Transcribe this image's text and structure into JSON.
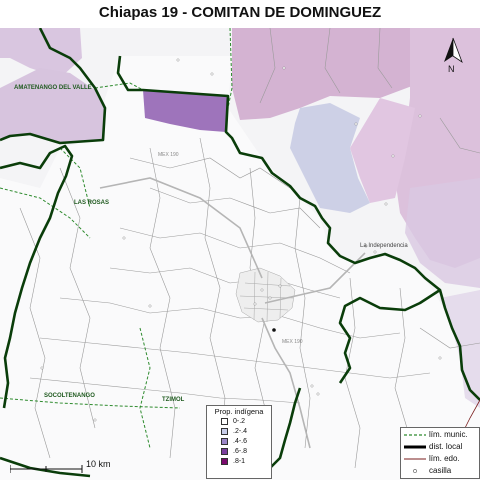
{
  "title": "Chiapas 19 - COMITAN DE DOMINGUEZ",
  "place_labels": {
    "amatenango": "AMATENANGO DEL VALLE",
    "las_rosas": "LAS ROSAS",
    "socoltenango": "SOCOLTENANGO",
    "tzimol": "TZIMOL",
    "la_independencia": "La Independencia"
  },
  "road_labels": {
    "mex190_north": "MEX 190",
    "mex190_south": "MEX 190"
  },
  "indigenous_legend": {
    "title": "Prop. indígena",
    "classes": [
      {
        "label": "0-.2",
        "color": "#ffffff"
      },
      {
        "label": ".2-.4",
        "color": "#c7cce8"
      },
      {
        "label": ".4-.6",
        "color": "#9b86c8"
      },
      {
        "label": ".6-.8",
        "color": "#7a3e9d"
      },
      {
        "label": ".8-1",
        "color": "#7a0a6d"
      }
    ]
  },
  "lines_legend": [
    {
      "label": "lím. munic.",
      "style": "municipal"
    },
    {
      "label": "dist. local",
      "style": "district"
    },
    {
      "label": "lím. edo.",
      "style": "state"
    },
    {
      "label": "casilla",
      "style": "polling"
    }
  ],
  "scale_label": "10 km",
  "north_label": "N",
  "colors": {
    "district_border": "#0a3d0a",
    "municipal_border": "#2e8b2e",
    "light_purple": "#d7c4de",
    "medium_purple": "#b08cc0",
    "dark_purple": "#9b6fb9",
    "blue_grey": "#c9cfe4",
    "background": "#f6f6f8"
  }
}
